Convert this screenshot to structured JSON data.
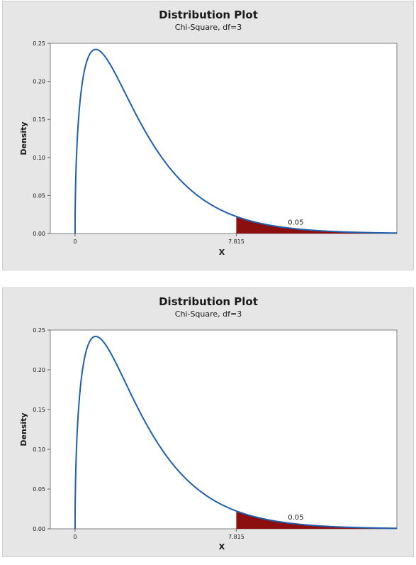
{
  "chart_data": [
    {
      "type": "area",
      "title": "Distribution Plot",
      "subtitle": "Chi-Square, df=3",
      "xlabel": "X",
      "ylabel": "Density",
      "xlim": [
        -1.2,
        15.6
      ],
      "ylim": [
        0,
        0.25
      ],
      "yticks": [
        "0.00",
        "0.05",
        "0.10",
        "0.15",
        "0.20",
        "0.25"
      ],
      "xticks": [
        {
          "value": 0,
          "label": "0"
        },
        {
          "value": 7.815,
          "label": "7.815"
        }
      ],
      "distribution": {
        "name": "Chi-Square",
        "df": 3
      },
      "shaded_region": {
        "from": 7.815,
        "to": 15.6,
        "area_label": "0.05",
        "label_x": 10.7
      },
      "colors": {
        "curve": "#1f5fae",
        "shade": "#8b0f0f",
        "panel": "#e6e6e6",
        "plot": "#ffffff"
      },
      "grid": false,
      "legend": "none"
    },
    {
      "type": "area",
      "title": "Distribution Plot",
      "subtitle": "Chi-Square, df=3",
      "xlabel": "X",
      "ylabel": "Density",
      "xlim": [
        -1.2,
        15.6
      ],
      "ylim": [
        0,
        0.25
      ],
      "yticks": [
        "0.00",
        "0.05",
        "0.10",
        "0.15",
        "0.20",
        "0.25"
      ],
      "xticks": [
        {
          "value": 0,
          "label": "0"
        },
        {
          "value": 7.815,
          "label": "7.815"
        }
      ],
      "distribution": {
        "name": "Chi-Square",
        "df": 3
      },
      "shaded_region": {
        "from": 7.815,
        "to": 15.6,
        "area_label": "0.05",
        "label_x": 10.7
      },
      "colors": {
        "curve": "#1f5fae",
        "shade": "#8b0f0f",
        "panel": "#e6e6e6",
        "plot": "#ffffff"
      },
      "grid": false,
      "legend": "none"
    }
  ]
}
